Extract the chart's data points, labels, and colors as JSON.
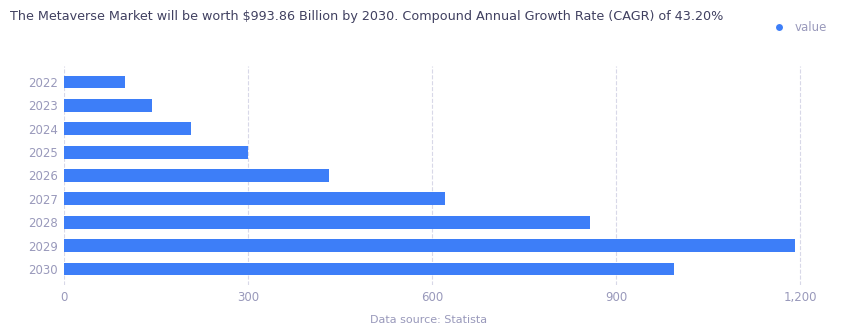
{
  "title": "The Metaverse Market will be worth $993.86 Billion by 2030. Compound Annual Growth Rate (CAGR) of 43.20%",
  "years": [
    "2022",
    "2023",
    "2024",
    "2025",
    "2026",
    "2027",
    "2028",
    "2029",
    "2030"
  ],
  "values": [
    100.27,
    144.46,
    207.92,
    299.55,
    431.43,
    621.47,
    856.93,
    1191.78,
    993.86
  ],
  "bar_color": "#3d7ef8",
  "background_color": "#ffffff",
  "xlim": [
    0,
    1260
  ],
  "xticks": [
    0,
    300,
    600,
    900,
    1200
  ],
  "xlabel": "",
  "ylabel": "",
  "data_source": "  Data source: Statista",
  "legend_label": "value",
  "legend_color": "#3d7ef8",
  "title_color": "#404060",
  "tick_color": "#9999bb",
  "grid_color": "#d8d8e8",
  "title_fontsize": 9.2,
  "axis_fontsize": 8.5,
  "source_fontsize": 8.0,
  "bar_height": 0.55
}
